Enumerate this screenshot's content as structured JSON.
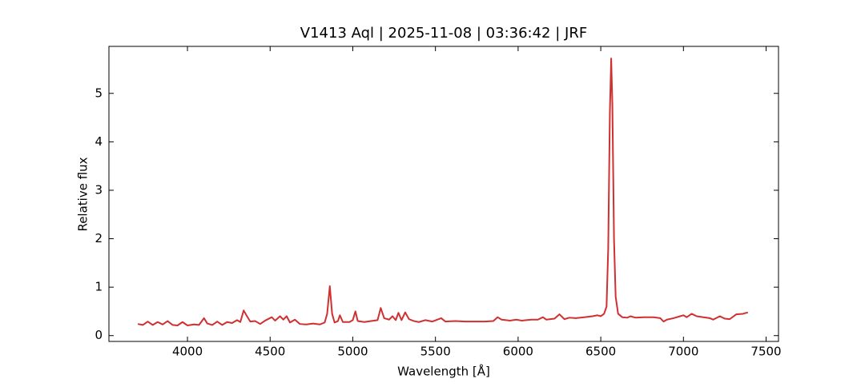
{
  "chart_data": {
    "type": "line",
    "title": "V1413 Aql | 2025-11-08 | 03:36:42 | JRF",
    "x_label": "Wavelength [Å]",
    "y_label": "Relative flux",
    "xlim": [
      3525,
      7575
    ],
    "ylim": [
      -0.12,
      5.97
    ],
    "xticks": [
      4000,
      4500,
      5000,
      5500,
      6000,
      6500,
      7000,
      7500
    ],
    "yticks": [
      0,
      1,
      2,
      3,
      4,
      5
    ],
    "x": [
      3700,
      3730,
      3760,
      3790,
      3820,
      3850,
      3880,
      3910,
      3940,
      3970,
      4000,
      4040,
      4070,
      4100,
      4120,
      4150,
      4180,
      4210,
      4240,
      4270,
      4300,
      4320,
      4340,
      4360,
      4380,
      4410,
      4440,
      4470,
      4510,
      4530,
      4560,
      4580,
      4600,
      4620,
      4650,
      4680,
      4720,
      4760,
      4800,
      4830,
      4845,
      4861,
      4875,
      4890,
      4910,
      4922,
      4940,
      4980,
      5000,
      5016,
      5030,
      5070,
      5110,
      5150,
      5169,
      5190,
      5220,
      5240,
      5260,
      5276,
      5295,
      5317,
      5340,
      5370,
      5400,
      5440,
      5480,
      5535,
      5560,
      5620,
      5680,
      5740,
      5800,
      5850,
      5876,
      5900,
      5950,
      5990,
      6020,
      6080,
      6120,
      6150,
      6170,
      6220,
      6250,
      6280,
      6310,
      6350,
      6400,
      6450,
      6480,
      6500,
      6520,
      6535,
      6545,
      6555,
      6563,
      6570,
      6580,
      6590,
      6605,
      6630,
      6660,
      6680,
      6710,
      6760,
      6820,
      6860,
      6880,
      6900,
      6940,
      6980,
      7000,
      7020,
      7050,
      7080,
      7120,
      7160,
      7180,
      7220,
      7250,
      7280,
      7320,
      7360,
      7390
    ],
    "series": [
      {
        "color": "#d0302f",
        "values": [
          0.24,
          0.22,
          0.29,
          0.22,
          0.28,
          0.23,
          0.3,
          0.22,
          0.21,
          0.28,
          0.21,
          0.23,
          0.22,
          0.36,
          0.25,
          0.22,
          0.29,
          0.22,
          0.28,
          0.26,
          0.32,
          0.28,
          0.52,
          0.4,
          0.29,
          0.3,
          0.24,
          0.31,
          0.38,
          0.31,
          0.4,
          0.33,
          0.4,
          0.27,
          0.33,
          0.24,
          0.23,
          0.25,
          0.23,
          0.27,
          0.45,
          1.02,
          0.45,
          0.27,
          0.3,
          0.42,
          0.28,
          0.28,
          0.32,
          0.5,
          0.3,
          0.28,
          0.3,
          0.32,
          0.57,
          0.36,
          0.33,
          0.4,
          0.32,
          0.47,
          0.32,
          0.48,
          0.34,
          0.3,
          0.28,
          0.32,
          0.29,
          0.36,
          0.29,
          0.3,
          0.29,
          0.29,
          0.29,
          0.3,
          0.38,
          0.33,
          0.31,
          0.33,
          0.31,
          0.33,
          0.33,
          0.38,
          0.33,
          0.35,
          0.44,
          0.34,
          0.37,
          0.36,
          0.38,
          0.4,
          0.42,
          0.4,
          0.45,
          0.6,
          1.8,
          4.6,
          5.72,
          4.8,
          2.0,
          0.8,
          0.45,
          0.38,
          0.37,
          0.4,
          0.37,
          0.38,
          0.38,
          0.36,
          0.29,
          0.33,
          0.36,
          0.4,
          0.42,
          0.38,
          0.45,
          0.4,
          0.38,
          0.36,
          0.33,
          0.4,
          0.35,
          0.34,
          0.44,
          0.45,
          0.48
        ]
      }
    ]
  }
}
